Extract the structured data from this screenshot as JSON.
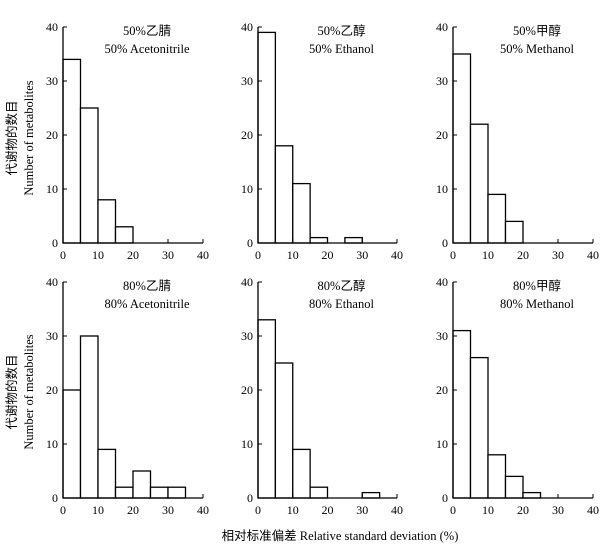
{
  "figure": {
    "ylabel_cn": "代谢物的数目",
    "ylabel_en": "Number of metabolites",
    "xlabel": "相对标准偏差 Relative standard deviation (%)"
  },
  "chart_data": [
    {
      "type": "bar",
      "title_cn": "50%乙腈",
      "title_en": "50% Acetonitrile",
      "bin_edges": [
        0,
        5,
        10,
        15,
        20,
        25,
        30,
        35,
        40
      ],
      "values": [
        34,
        25,
        8,
        3,
        0,
        0,
        0,
        0
      ],
      "xlim": [
        0,
        40
      ],
      "ylim": [
        0,
        40
      ],
      "xticks": [
        "0",
        "10",
        "20",
        "30",
        "40"
      ],
      "yticks": [
        "0",
        "10",
        "20",
        "30",
        "40"
      ]
    },
    {
      "type": "bar",
      "title_cn": "50%乙醇",
      "title_en": "50% Ethanol",
      "bin_edges": [
        0,
        5,
        10,
        15,
        20,
        25,
        30,
        35,
        40
      ],
      "values": [
        39,
        18,
        11,
        1,
        0,
        1,
        0,
        0
      ],
      "xlim": [
        0,
        40
      ],
      "ylim": [
        0,
        40
      ],
      "xticks": [
        "0",
        "10",
        "20",
        "30",
        "40"
      ],
      "yticks": [
        "0",
        "10",
        "20",
        "30",
        "40"
      ]
    },
    {
      "type": "bar",
      "title_cn": "50%甲醇",
      "title_en": "50% Methanol",
      "bin_edges": [
        0,
        5,
        10,
        15,
        20,
        25,
        30,
        35,
        40
      ],
      "values": [
        35,
        22,
        9,
        4,
        0,
        0,
        0,
        0
      ],
      "xlim": [
        0,
        40
      ],
      "ylim": [
        0,
        40
      ],
      "xticks": [
        "0",
        "10",
        "20",
        "30",
        "40"
      ],
      "yticks": [
        "0",
        "10",
        "20",
        "30",
        "40"
      ]
    },
    {
      "type": "bar",
      "title_cn": "80%乙腈",
      "title_en": "80% Acetonitrile",
      "bin_edges": [
        0,
        5,
        10,
        15,
        20,
        25,
        30,
        35,
        40
      ],
      "values": [
        20,
        30,
        9,
        2,
        5,
        2,
        2,
        0
      ],
      "xlim": [
        0,
        40
      ],
      "ylim": [
        0,
        40
      ],
      "xticks": [
        "0",
        "10",
        "20",
        "30",
        "40"
      ],
      "yticks": [
        "0",
        "10",
        "20",
        "30",
        "40"
      ]
    },
    {
      "type": "bar",
      "title_cn": "80%乙醇",
      "title_en": "80% Ethanol",
      "bin_edges": [
        0,
        5,
        10,
        15,
        20,
        25,
        30,
        35,
        40
      ],
      "values": [
        33,
        25,
        9,
        2,
        0,
        0,
        1,
        0
      ],
      "xlim": [
        0,
        40
      ],
      "ylim": [
        0,
        40
      ],
      "xticks": [
        "0",
        "10",
        "20",
        "30",
        "40"
      ],
      "yticks": [
        "0",
        "10",
        "20",
        "30",
        "40"
      ]
    },
    {
      "type": "bar",
      "title_cn": "80%甲醇",
      "title_en": "80% Methanol",
      "bin_edges": [
        0,
        5,
        10,
        15,
        20,
        25,
        30,
        35,
        40
      ],
      "values": [
        31,
        26,
        8,
        4,
        1,
        0,
        0,
        0
      ],
      "xlim": [
        0,
        40
      ],
      "ylim": [
        0,
        40
      ],
      "xticks": [
        "0",
        "10",
        "20",
        "30",
        "40"
      ],
      "yticks": [
        "0",
        "10",
        "20",
        "30",
        "40"
      ]
    }
  ]
}
